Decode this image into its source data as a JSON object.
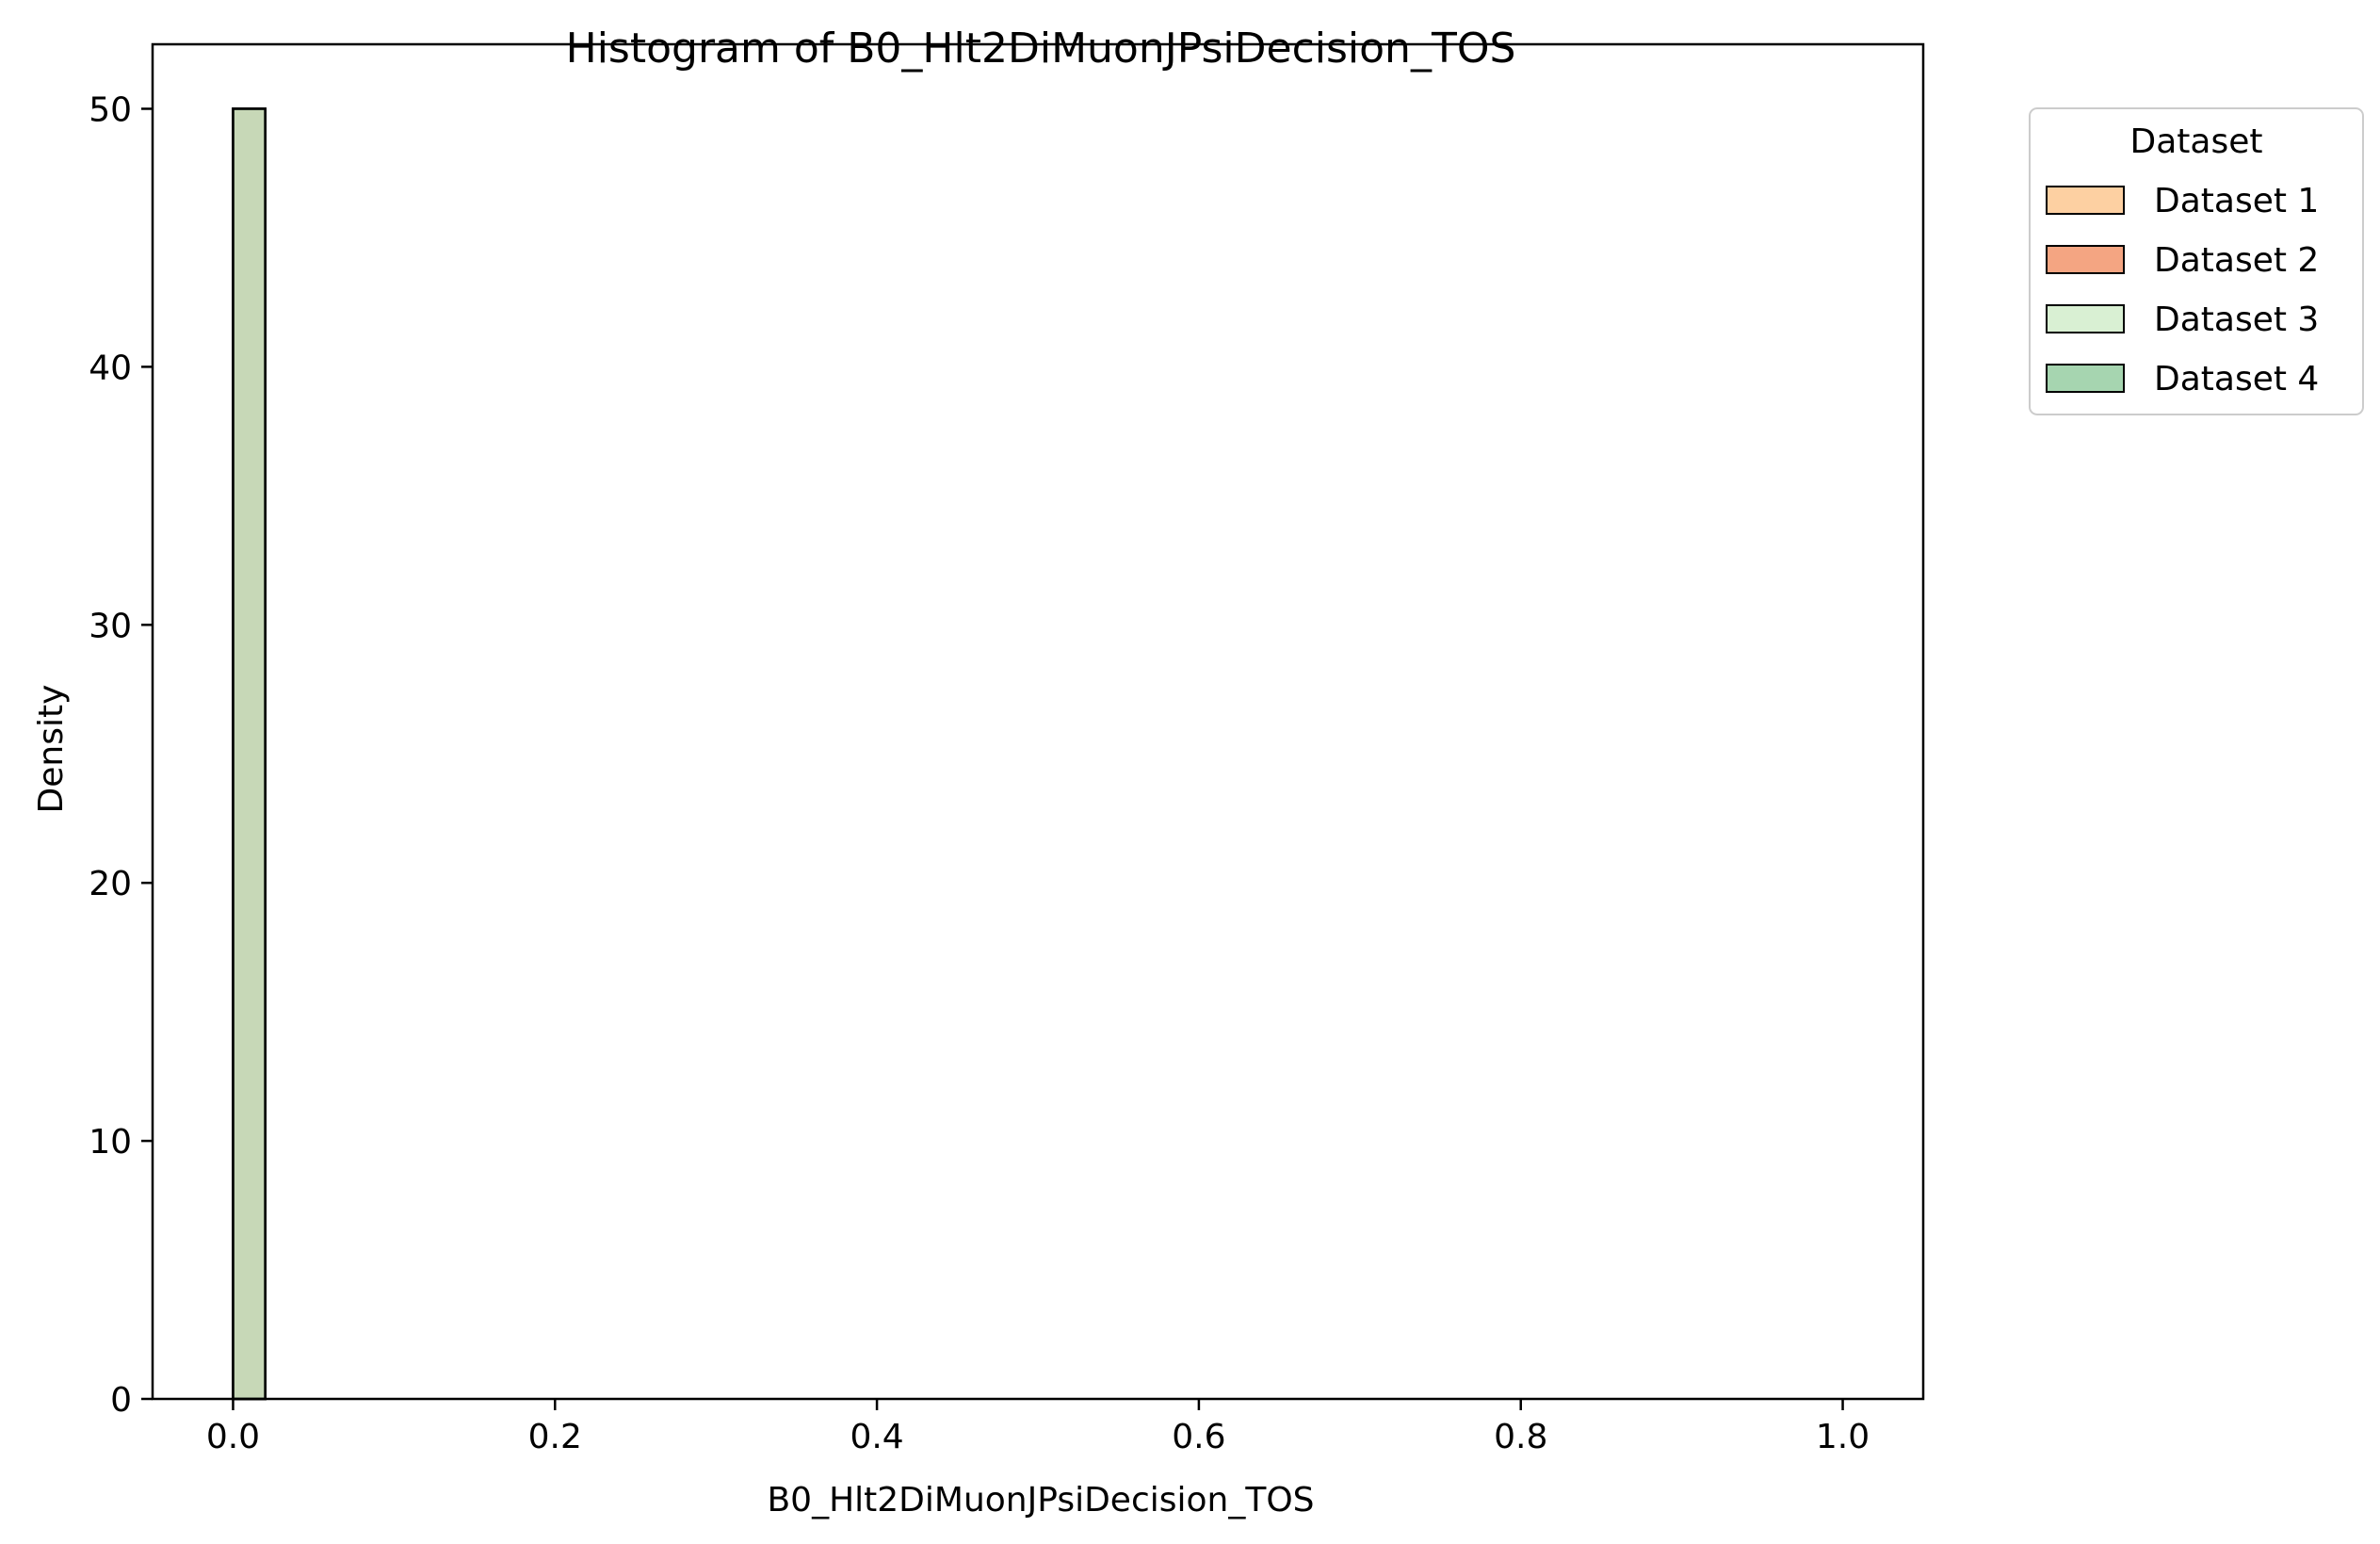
{
  "chart_data": {
    "type": "bar",
    "title": "Histogram of B0_Hlt2DiMuonJPsiDecision_TOS",
    "xlabel": "B0_Hlt2DiMuonJPsiDecision_TOS",
    "ylabel": "Density",
    "xlim": [
      -0.05,
      1.05
    ],
    "ylim": [
      0,
      52.5
    ],
    "xticks": [
      0.0,
      0.2,
      0.4,
      0.6,
      0.8,
      1.0
    ],
    "xtick_labels": [
      "0.0",
      "0.2",
      "0.4",
      "0.6",
      "0.8",
      "1.0"
    ],
    "yticks": [
      0,
      10,
      20,
      30,
      40,
      50
    ],
    "ytick_labels": [
      "0",
      "10",
      "20",
      "30",
      "40",
      "50"
    ],
    "grid": false,
    "legend": {
      "title": "Dataset",
      "placement": "outside-top-right"
    },
    "bin_width": 0.02,
    "series": [
      {
        "name": "Dataset 1",
        "color": "#fdd0a2",
        "bins": [
          {
            "x0": 0.0,
            "x1": 0.02,
            "value": 50
          },
          {
            "x0": 0.98,
            "x1": 1.0,
            "value": 0
          }
        ]
      },
      {
        "name": "Dataset 2",
        "color": "#f4a582",
        "bins": [
          {
            "x0": 0.0,
            "x1": 0.02,
            "value": 50
          },
          {
            "x0": 0.98,
            "x1": 1.0,
            "value": 0
          }
        ]
      },
      {
        "name": "Dataset 3",
        "color": "#d9f0d3",
        "bins": [
          {
            "x0": 0.0,
            "x1": 0.02,
            "value": 50
          },
          {
            "x0": 0.98,
            "x1": 1.0,
            "value": 0
          }
        ]
      },
      {
        "name": "Dataset 4",
        "color": "#a6d5b0",
        "bins": [
          {
            "x0": 0.0,
            "x1": 0.02,
            "value": 50
          },
          {
            "x0": 0.98,
            "x1": 1.0,
            "value": 0
          }
        ]
      }
    ],
    "overlap_color": "#8fa86a"
  }
}
